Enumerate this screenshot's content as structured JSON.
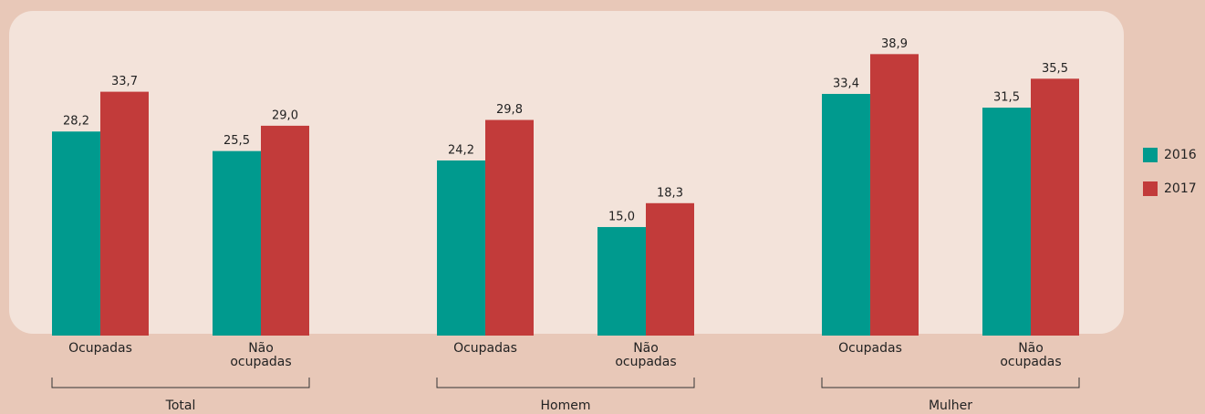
{
  "chart_data": {
    "type": "bar",
    "groups": [
      "Total",
      "Homem",
      "Mulher"
    ],
    "categories": [
      "Ocupadas",
      "Não ocupadas",
      "Ocupadas",
      "Não ocupadas",
      "Ocupadas",
      "Não ocupadas"
    ],
    "series": [
      {
        "name": "2016",
        "color": "#009a8e",
        "values": [
          28.2,
          25.5,
          24.2,
          15.0,
          33.4,
          31.5
        ],
        "value_labels": [
          "28,2",
          "25,5",
          "24,2",
          "15,0",
          "33,4",
          "31,5"
        ]
      },
      {
        "name": "2017",
        "color": "#c23b3a",
        "values": [
          33.7,
          29.0,
          29.8,
          18.3,
          38.9,
          35.5
        ],
        "value_labels": [
          "33,7",
          "29,0",
          "29,8",
          "18,3",
          "38,9",
          "35,5"
        ]
      }
    ],
    "ylim": [
      0,
      46
    ]
  }
}
